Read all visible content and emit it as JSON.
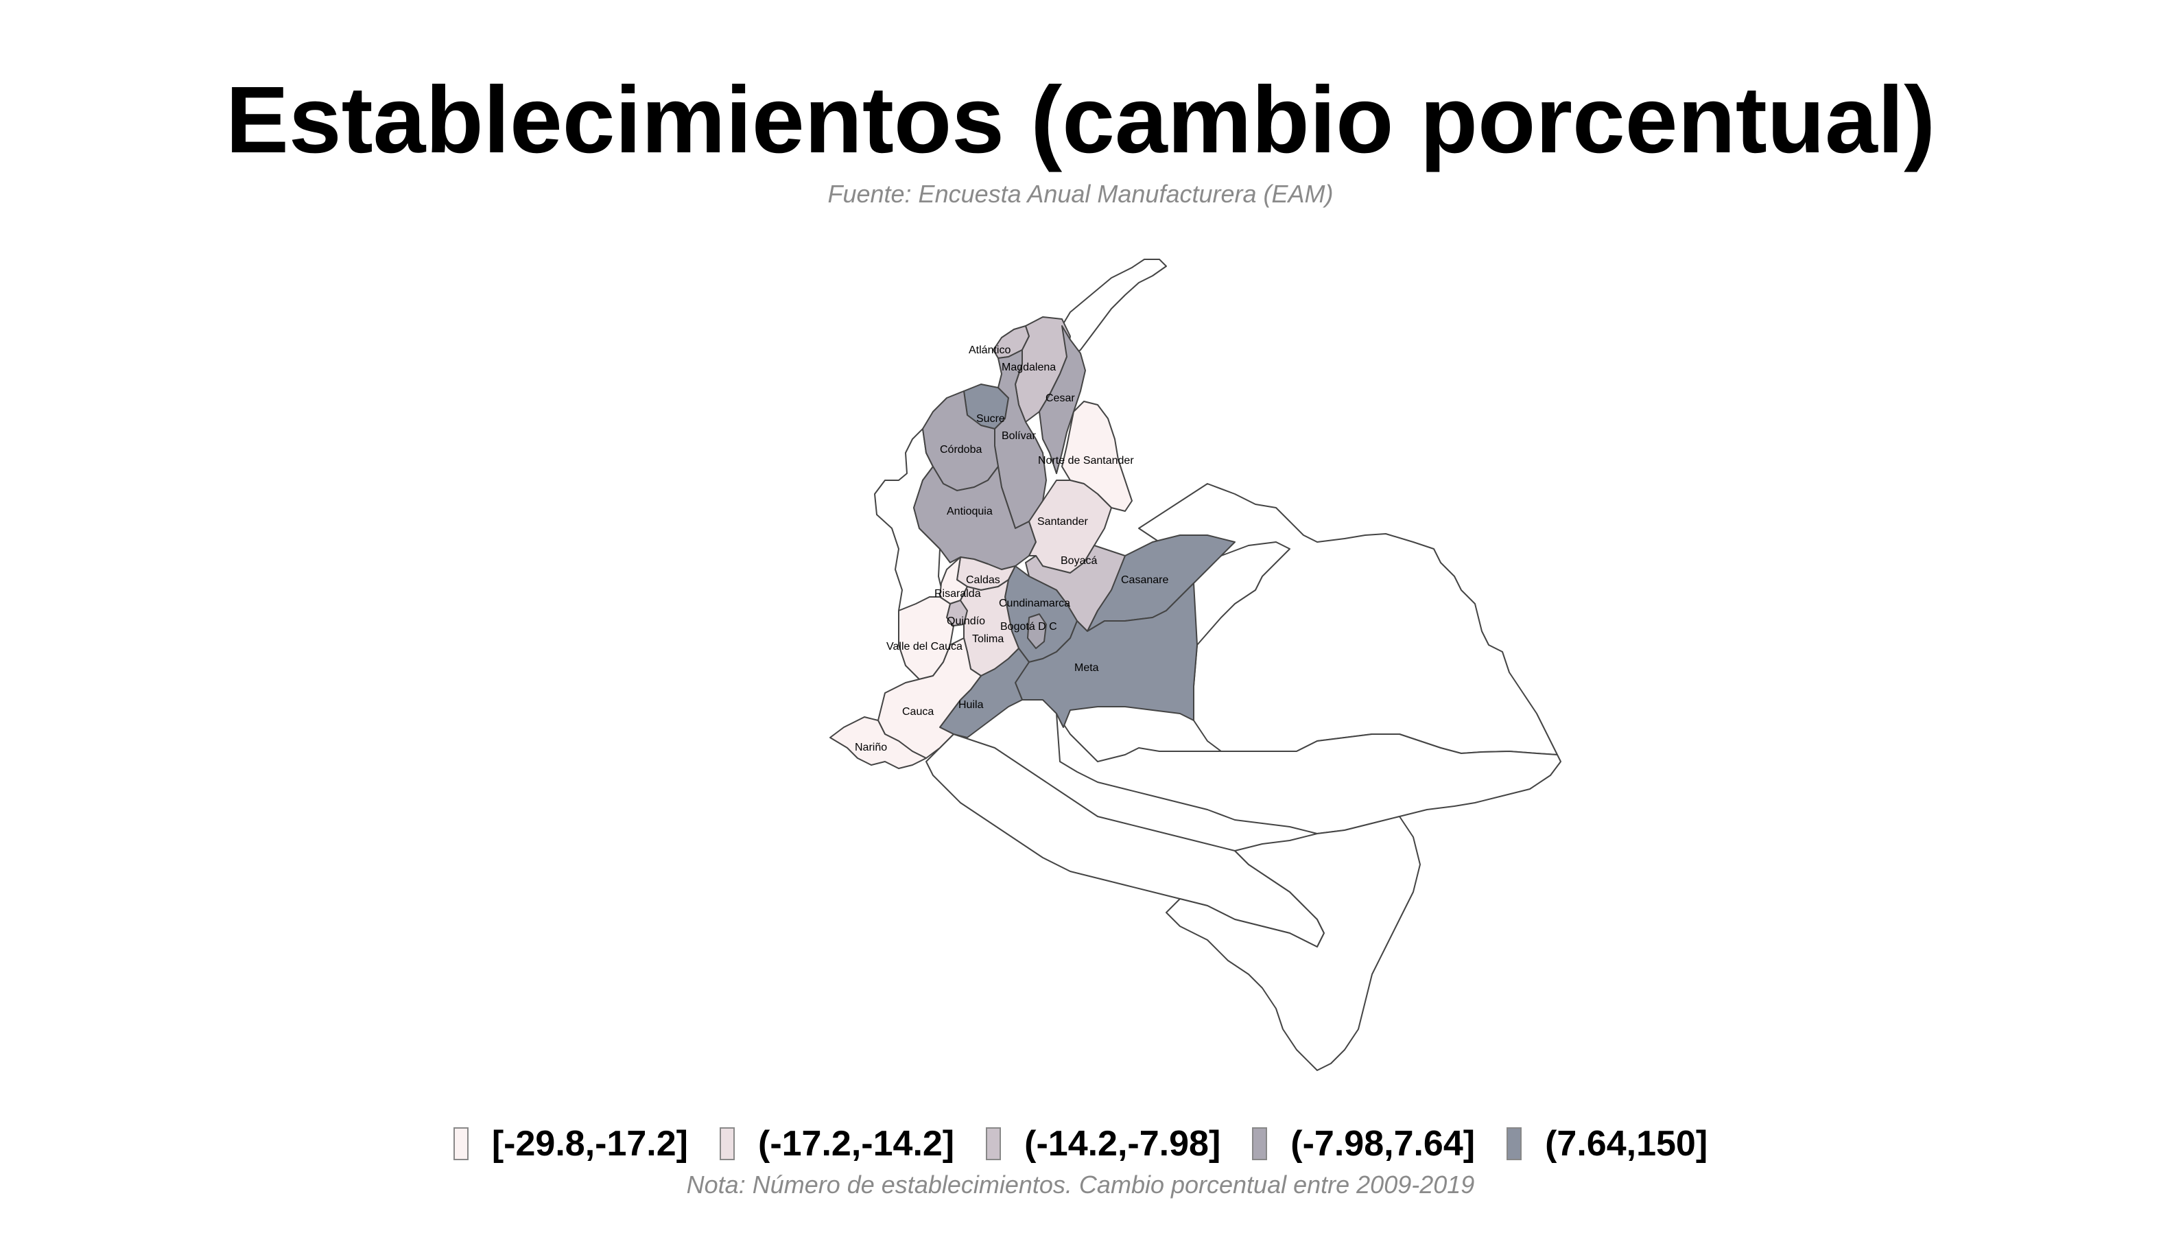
{
  "title": "Establecimientos (cambio porcentual)",
  "subtitle": "Fuente: Encuesta Anual Manufacturera (EAM)",
  "caption": "Nota: Número de establecimientos. Cambio porcentual entre 2009-2019",
  "legend": [
    {
      "label": "[-29.8,-17.2]",
      "color": "#fbf2f2"
    },
    {
      "label": "(-17.2,-14.2]",
      "color": "#ece0e3"
    },
    {
      "label": "(-14.2,-7.98]",
      "color": "#cbc2ca"
    },
    {
      "label": "(-7.98,7.64]",
      "color": "#aaa7b2"
    },
    {
      "label": "(7.64,150]",
      "color": "#8b92a0"
    }
  ],
  "departments": [
    {
      "name": "Atlántico",
      "color": "#cbc2ca"
    },
    {
      "name": "Magdalena",
      "color": "#cbc2ca"
    },
    {
      "name": "Cesar",
      "color": "#aaa7b2"
    },
    {
      "name": "Sucre",
      "color": "#8b92a0"
    },
    {
      "name": "Bolívar",
      "color": "#aaa7b2"
    },
    {
      "name": "Córdoba",
      "color": "#aaa7b2"
    },
    {
      "name": "Norte de Santander",
      "color": "#fbf2f2"
    },
    {
      "name": "Antioquia",
      "color": "#aaa7b2"
    },
    {
      "name": "Santander",
      "color": "#ece0e3"
    },
    {
      "name": "Boyacá",
      "color": "#cbc2ca"
    },
    {
      "name": "Casanare",
      "color": "#8b92a0"
    },
    {
      "name": "Caldas",
      "color": "#ece0e3"
    },
    {
      "name": "Risaralda",
      "color": "#fbf2f2"
    },
    {
      "name": "Cundinamarca",
      "color": "#8b92a0"
    },
    {
      "name": "Quindío",
      "color": "#cbc2ca"
    },
    {
      "name": "Bogotá D C",
      "color": "#aaa7b2"
    },
    {
      "name": "Tolima",
      "color": "#ece0e3"
    },
    {
      "name": "Valle del Cauca",
      "color": "#fbf2f2"
    },
    {
      "name": "Meta",
      "color": "#8b92a0"
    },
    {
      "name": "Huila",
      "color": "#8b92a0"
    },
    {
      "name": "Cauca",
      "color": "#fbf2f2"
    },
    {
      "name": "Nariño",
      "color": "#fbf2f2"
    }
  ]
}
